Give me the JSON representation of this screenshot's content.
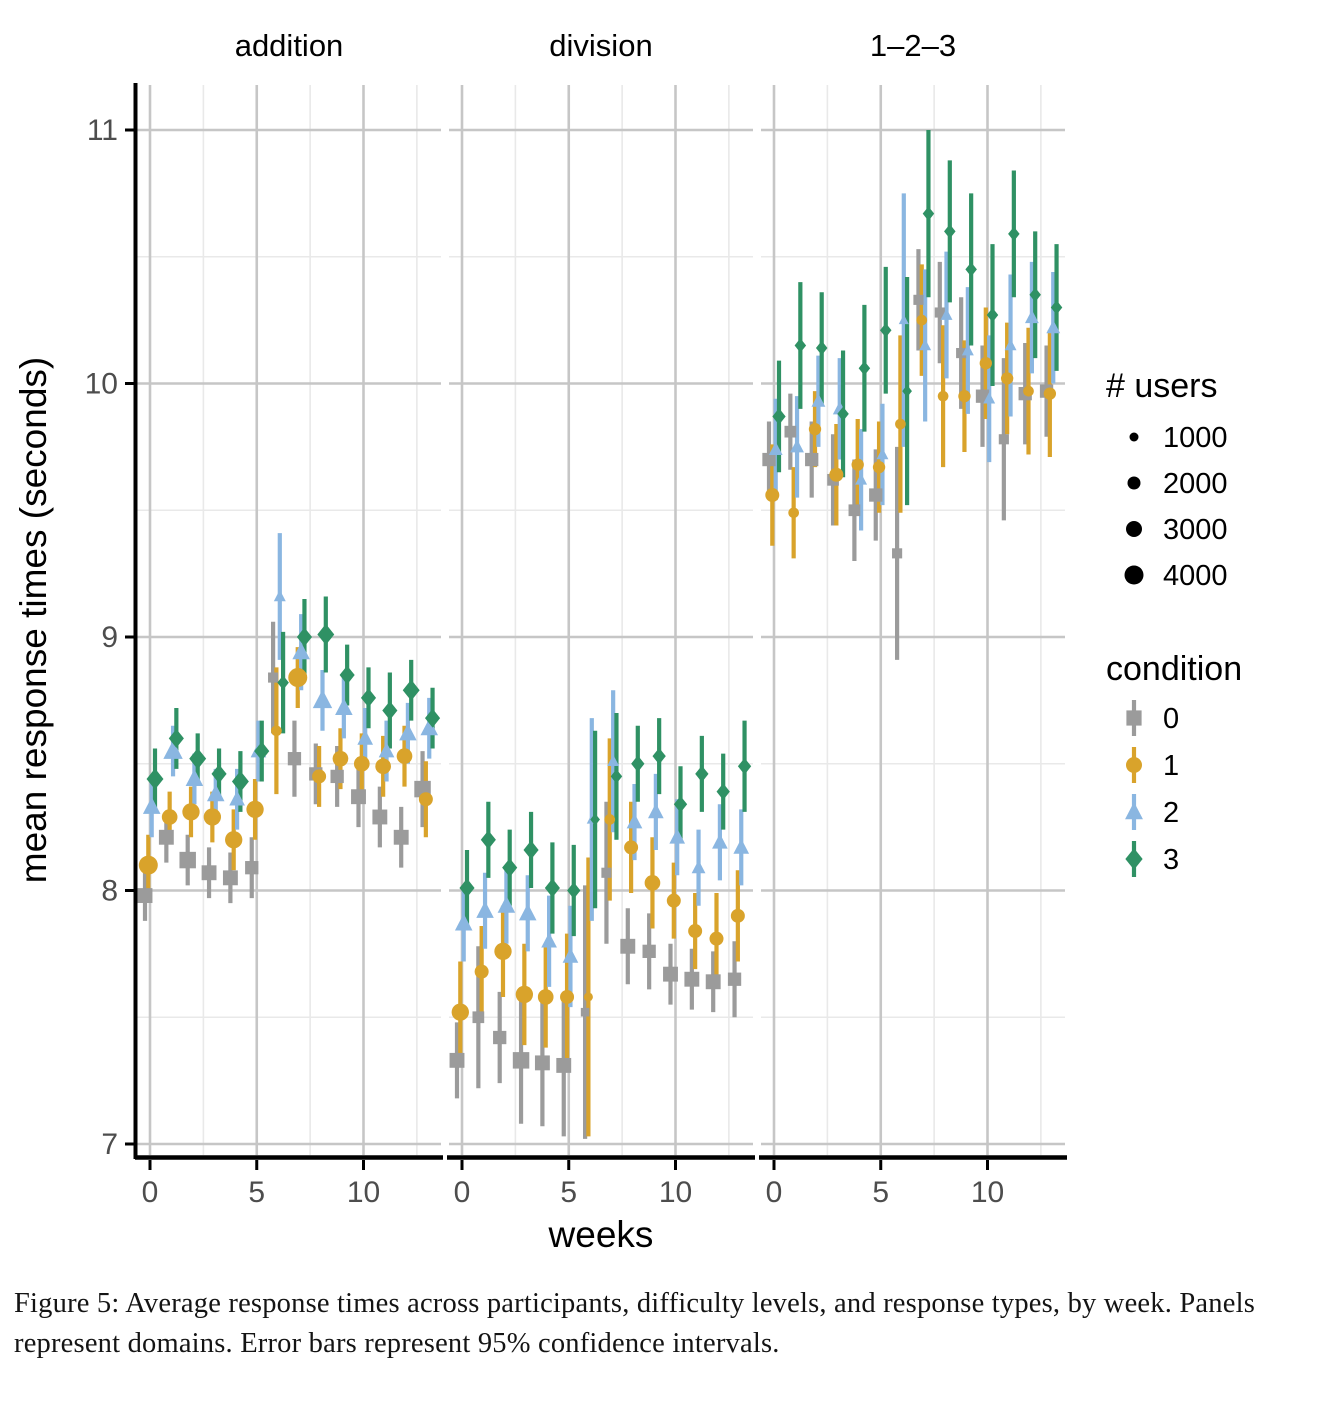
{
  "figure": {
    "y_axis": {
      "label": "mean response times (seconds)",
      "ticks": [
        7,
        8,
        9,
        10,
        11
      ],
      "range": [
        6.95,
        11.18
      ]
    },
    "x_axis": {
      "label": "weeks",
      "ticks": [
        0,
        5,
        10
      ],
      "range": [
        0,
        13
      ]
    },
    "legend_size": {
      "title": "# users",
      "items": [
        "1000",
        "2000",
        "3000",
        "4000"
      ],
      "values": [
        1000,
        2000,
        3000,
        4000
      ],
      "marker_color": "#000000"
    },
    "legend_condition": {
      "title": "condition",
      "items": [
        {
          "label": "0",
          "shape": "square",
          "color": "#9B9B9B"
        },
        {
          "label": "1",
          "shape": "circle",
          "color": "#D9A32B"
        },
        {
          "label": "2",
          "shape": "triangle",
          "color": "#8AB6E1"
        },
        {
          "label": "3",
          "shape": "diamond",
          "color": "#2F9164"
        }
      ]
    },
    "caption": "Figure 5: Average response times across participants, difficulty levels, and response types, by week. Panels represent domains. Error bars represent 95% confidence intervals."
  },
  "theme": {
    "grid_major": "#C6C6C6",
    "grid_minor": "#E9E9E9",
    "axis_text": "#4D4D4D",
    "axis_line": "#000000",
    "title_text": "#000000",
    "background": "#FFFFFF"
  },
  "chart_data": {
    "type": "scatter",
    "description": "Dot plot with 95% CI error bars, faceted by domain; point size = # users, point shape/color = condition",
    "x": [
      0,
      1,
      2,
      3,
      4,
      5,
      6,
      7,
      8,
      9,
      10,
      11,
      12,
      13
    ],
    "xlabel": "weeks",
    "ylabel": "mean response times (seconds)",
    "ylim": [
      6.95,
      11.18
    ],
    "xticks": [
      0,
      5,
      10
    ],
    "yticks": [
      7,
      8,
      9,
      10,
      11
    ],
    "legend_position": "right",
    "facets": [
      {
        "title": "addition",
        "series": [
          {
            "condition": "0",
            "shape": "square",
            "color": "#9B9B9B",
            "y": [
              7.98,
              8.21,
              8.12,
              8.07,
              8.05,
              8.09,
              8.84,
              8.52,
              8.46,
              8.45,
              8.37,
              8.29,
              8.21,
              8.4
            ],
            "ci": [
              0.1,
              0.1,
              0.1,
              0.1,
              0.1,
              0.12,
              0.22,
              0.15,
              0.12,
              0.12,
              0.12,
              0.12,
              0.12,
              0.15
            ],
            "users": [
              3000,
              3000,
              3500,
              3000,
              3000,
              2500,
              1500,
              2500,
              2500,
              2500,
              3000,
              3000,
              3000,
              3500
            ]
          },
          {
            "condition": "1",
            "shape": "circle",
            "color": "#D9A32B",
            "y": [
              8.1,
              8.29,
              8.31,
              8.29,
              8.2,
              8.32,
              8.63,
              8.84,
              8.45,
              8.52,
              8.5,
              8.49,
              8.53,
              8.36
            ],
            "ci": [
              0.12,
              0.1,
              0.1,
              0.1,
              0.12,
              0.12,
              0.25,
              0.12,
              0.12,
              0.12,
              0.12,
              0.12,
              0.12,
              0.15
            ],
            "users": [
              4000,
              3000,
              3500,
              3500,
              3500,
              3500,
              1500,
              4000,
              2500,
              3000,
              3000,
              3000,
              3000,
              2500
            ]
          },
          {
            "condition": "2",
            "shape": "triangle",
            "color": "#8AB6E1",
            "y": [
              8.33,
              8.55,
              8.44,
              8.38,
              8.36,
              8.55,
              9.16,
              8.94,
              8.75,
              8.72,
              8.6,
              8.55,
              8.62,
              8.64
            ],
            "ci": [
              0.12,
              0.1,
              0.1,
              0.1,
              0.12,
              0.12,
              0.25,
              0.15,
              0.12,
              0.12,
              0.12,
              0.12,
              0.12,
              0.12
            ],
            "users": [
              3000,
              3500,
              3000,
              3000,
              2500,
              2500,
              1500,
              3000,
              3500,
              3000,
              2500,
              2500,
              3000,
              3000
            ]
          },
          {
            "condition": "3",
            "shape": "diamond",
            "color": "#2F9164",
            "y": [
              8.44,
              8.6,
              8.52,
              8.46,
              8.43,
              8.55,
              8.82,
              9.0,
              9.01,
              8.85,
              8.76,
              8.71,
              8.79,
              8.68
            ],
            "ci": [
              0.12,
              0.12,
              0.1,
              0.1,
              0.12,
              0.12,
              0.2,
              0.15,
              0.15,
              0.12,
              0.12,
              0.15,
              0.12,
              0.12
            ],
            "users": [
              3000,
              2500,
              3000,
              2500,
              3000,
              2500,
              1500,
              2500,
              3000,
              2500,
              2500,
              2500,
              3000,
              2500
            ]
          }
        ]
      },
      {
        "title": "division",
        "series": [
          {
            "condition": "0",
            "shape": "square",
            "color": "#9B9B9B",
            "y": [
              7.33,
              7.5,
              7.42,
              7.33,
              7.32,
              7.31,
              7.52,
              8.07,
              7.78,
              7.76,
              7.67,
              7.65,
              7.64,
              7.65
            ],
            "ci": [
              0.15,
              0.28,
              0.18,
              0.25,
              0.25,
              0.28,
              0.5,
              0.28,
              0.15,
              0.15,
              0.12,
              0.12,
              0.12,
              0.15
            ],
            "users": [
              3000,
              2000,
              2500,
              3500,
              3000,
              3000,
              1000,
              1500,
              3000,
              2500,
              3000,
              3000,
              3000,
              2500
            ]
          },
          {
            "condition": "1",
            "shape": "circle",
            "color": "#D9A32B",
            "y": [
              7.52,
              7.68,
              7.76,
              7.59,
              7.58,
              7.58,
              7.58,
              8.28,
              8.17,
              8.03,
              7.96,
              7.84,
              7.81,
              7.9
            ],
            "ci": [
              0.2,
              0.18,
              0.18,
              0.2,
              0.2,
              0.25,
              0.55,
              0.32,
              0.18,
              0.18,
              0.15,
              0.15,
              0.18,
              0.18
            ],
            "users": [
              3500,
              2500,
              3500,
              3500,
              3000,
              2500,
              1000,
              1500,
              2500,
              3000,
              2500,
              2500,
              2500,
              2500
            ]
          },
          {
            "condition": "2",
            "shape": "triangle",
            "color": "#8AB6E1",
            "y": [
              7.87,
              7.92,
              7.94,
              7.91,
              7.8,
              7.74,
              8.28,
              8.51,
              8.27,
              8.31,
              8.21,
              8.09,
              8.19,
              8.17
            ],
            "ci": [
              0.15,
              0.15,
              0.15,
              0.15,
              0.18,
              0.2,
              0.4,
              0.28,
              0.15,
              0.15,
              0.15,
              0.15,
              0.15,
              0.15
            ],
            "users": [
              3000,
              3000,
              3000,
              3000,
              2500,
              2500,
              1000,
              1500,
              2500,
              2500,
              2500,
              2000,
              2500,
              2500
            ]
          },
          {
            "condition": "3",
            "shape": "diamond",
            "color": "#2F9164",
            "y": [
              8.01,
              8.2,
              8.09,
              8.16,
              8.01,
              8.0,
              8.28,
              8.45,
              8.5,
              8.53,
              8.34,
              8.46,
              8.39,
              8.49
            ],
            "ci": [
              0.15,
              0.15,
              0.15,
              0.15,
              0.18,
              0.18,
              0.35,
              0.25,
              0.15,
              0.15,
              0.15,
              0.15,
              0.15,
              0.18
            ],
            "users": [
              2500,
              2500,
              2500,
              2500,
              2500,
              2000,
              1000,
              1500,
              2000,
              2000,
              2000,
              2000,
              2000,
              2000
            ]
          }
        ]
      },
      {
        "title": "1–2–3",
        "series": [
          {
            "condition": "0",
            "shape": "square",
            "color": "#9B9B9B",
            "y": [
              9.7,
              9.81,
              9.7,
              9.62,
              9.5,
              9.56,
              9.33,
              10.33,
              10.28,
              10.12,
              9.95,
              9.78,
              9.96,
              9.97
            ],
            "ci": [
              0.15,
              0.15,
              0.15,
              0.18,
              0.2,
              0.18,
              0.42,
              0.2,
              0.2,
              0.22,
              0.2,
              0.32,
              0.2,
              0.18
            ],
            "users": [
              2500,
              2000,
              2500,
              2000,
              2000,
              2500,
              1500,
              1500,
              1500,
              1500,
              2500,
              1500,
              2500,
              2500
            ]
          },
          {
            "condition": "1",
            "shape": "circle",
            "color": "#D9A32B",
            "y": [
              9.56,
              9.49,
              9.82,
              9.64,
              9.68,
              9.67,
              9.84,
              10.25,
              9.95,
              9.95,
              10.08,
              10.02,
              9.97,
              9.96
            ],
            "ci": [
              0.2,
              0.18,
              0.15,
              0.2,
              0.18,
              0.18,
              0.35,
              0.22,
              0.28,
              0.22,
              0.22,
              0.22,
              0.25,
              0.25
            ],
            "users": [
              2500,
              1500,
              2000,
              2500,
              2000,
              2000,
              1500,
              1500,
              1500,
              2000,
              2000,
              2000,
              1500,
              2000
            ]
          },
          {
            "condition": "2",
            "shape": "triangle",
            "color": "#8AB6E1",
            "y": [
              9.74,
              9.75,
              9.93,
              9.9,
              9.62,
              9.72,
              10.25,
              10.15,
              10.27,
              10.13,
              9.94,
              10.15,
              10.26,
              10.22
            ],
            "ci": [
              0.2,
              0.2,
              0.18,
              0.2,
              0.2,
              0.2,
              0.5,
              0.3,
              0.25,
              0.25,
              0.25,
              0.28,
              0.22,
              0.22
            ],
            "users": [
              2000,
              2000,
              2000,
              2000,
              1500,
              1500,
              1000,
              1500,
              1500,
              1500,
              1500,
              1500,
              2000,
              2000
            ]
          },
          {
            "condition": "3",
            "shape": "diamond",
            "color": "#2F9164",
            "y": [
              9.87,
              10.15,
              10.14,
              9.88,
              10.06,
              10.21,
              9.97,
              10.67,
              10.6,
              10.45,
              10.27,
              10.59,
              10.35,
              10.3
            ],
            "ci": [
              0.22,
              0.25,
              0.22,
              0.25,
              0.25,
              0.25,
              0.45,
              0.33,
              0.28,
              0.3,
              0.28,
              0.25,
              0.25,
              0.25
            ],
            "users": [
              2000,
              1500,
              1500,
              1500,
              1500,
              1500,
              1000,
              1500,
              1500,
              1500,
              1500,
              1500,
              1500,
              1500
            ]
          }
        ]
      }
    ],
    "size_scale": {
      "title": "# users",
      "breaks": [
        1000,
        2000,
        3000,
        4000
      ]
    }
  }
}
